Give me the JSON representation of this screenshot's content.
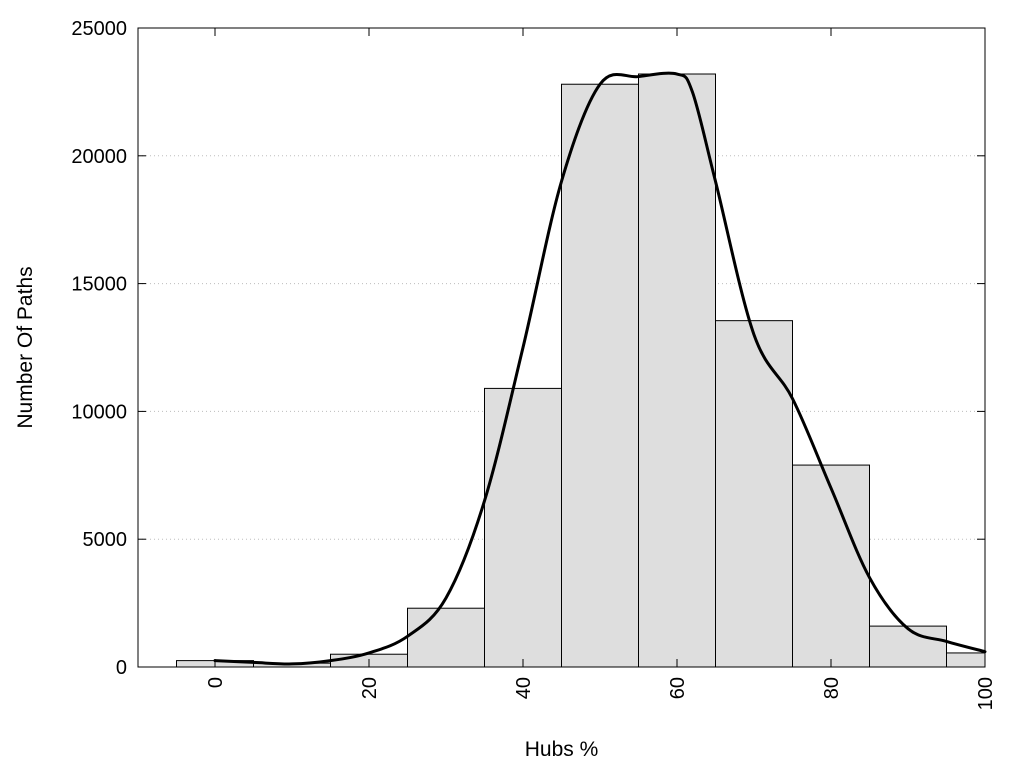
{
  "chart_data": {
    "type": "bar",
    "xlabel": "Hubs %",
    "ylabel": "Number Of Paths",
    "xlim": [
      -10,
      100
    ],
    "ylim": [
      0,
      25000
    ],
    "x_ticks": [
      0,
      20,
      40,
      60,
      80,
      100
    ],
    "y_ticks": [
      0,
      5000,
      10000,
      15000,
      20000,
      25000
    ],
    "grid": "horizontal dotted",
    "bin_width": 10,
    "bins": [
      {
        "center": 0,
        "value": 250
      },
      {
        "center": 10,
        "value": 150
      },
      {
        "center": 20,
        "value": 500
      },
      {
        "center": 30,
        "value": 2300
      },
      {
        "center": 40,
        "value": 10900
      },
      {
        "center": 50,
        "value": 22800
      },
      {
        "center": 60,
        "value": 23200
      },
      {
        "center": 70,
        "value": 13550
      },
      {
        "center": 80,
        "value": 7900
      },
      {
        "center": 90,
        "value": 1600
      },
      {
        "center": 100,
        "value": 550
      }
    ],
    "curve": {
      "x": [
        0,
        5,
        10,
        15,
        20,
        25,
        30,
        35,
        40,
        45,
        50,
        55,
        60,
        62,
        65,
        70,
        75,
        80,
        85,
        90,
        95,
        100
      ],
      "y": [
        250,
        180,
        120,
        250,
        550,
        1200,
        2700,
        6500,
        12500,
        19000,
        22800,
        23100,
        23200,
        22500,
        19000,
        13000,
        10500,
        7000,
        3500,
        1500,
        1000,
        600
      ]
    },
    "colors": {
      "bar_fill": "#dedede",
      "bar_stroke": "#000000",
      "curve": "#000000"
    }
  }
}
